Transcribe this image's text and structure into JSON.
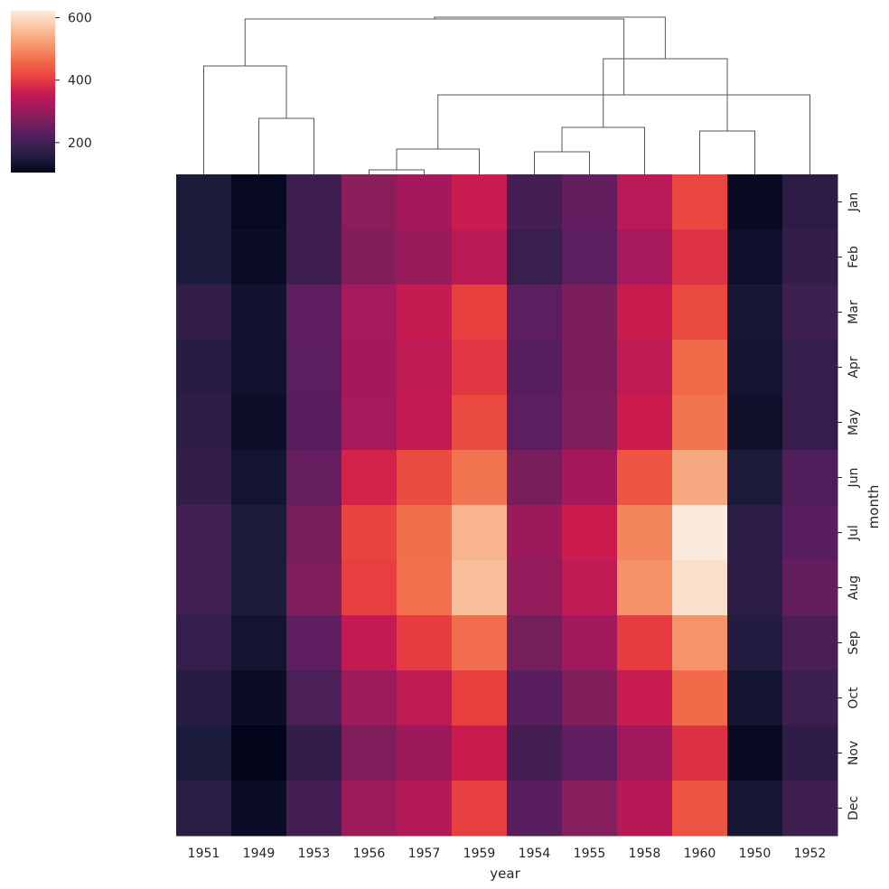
{
  "chart_data": {
    "type": "heatmap",
    "xlabel": "year",
    "ylabel": "month",
    "x_categories": [
      "1951",
      "1949",
      "1953",
      "1956",
      "1957",
      "1959",
      "1954",
      "1955",
      "1958",
      "1960",
      "1950",
      "1952"
    ],
    "y_categories": [
      "Jan",
      "Feb",
      "Mar",
      "Apr",
      "May",
      "Jun",
      "Jul",
      "Aug",
      "Sep",
      "Oct",
      "Nov",
      "Dec"
    ],
    "values": [
      [
        145,
        112,
        196,
        284,
        315,
        360,
        204,
        242,
        340,
        417,
        115,
        171
      ],
      [
        150,
        118,
        196,
        277,
        301,
        342,
        188,
        233,
        318,
        391,
        126,
        180
      ],
      [
        178,
        132,
        236,
        317,
        356,
        406,
        235,
        267,
        362,
        419,
        141,
        193
      ],
      [
        163,
        129,
        235,
        313,
        348,
        396,
        227,
        269,
        348,
        461,
        135,
        181
      ],
      [
        172,
        121,
        229,
        318,
        355,
        420,
        234,
        270,
        363,
        472,
        125,
        183
      ],
      [
        178,
        135,
        243,
        374,
        422,
        472,
        264,
        315,
        435,
        535,
        149,
        218
      ],
      [
        199,
        148,
        264,
        413,
        465,
        548,
        302,
        364,
        491,
        622,
        170,
        230
      ],
      [
        199,
        148,
        272,
        405,
        467,
        559,
        293,
        347,
        505,
        606,
        170,
        242
      ],
      [
        184,
        136,
        237,
        355,
        404,
        463,
        259,
        312,
        404,
        508,
        158,
        209
      ],
      [
        162,
        119,
        211,
        306,
        347,
        407,
        229,
        274,
        359,
        461,
        133,
        191
      ],
      [
        146,
        104,
        180,
        271,
        305,
        362,
        203,
        237,
        310,
        390,
        114,
        172
      ],
      [
        166,
        118,
        201,
        306,
        336,
        405,
        229,
        278,
        337,
        432,
        140,
        194
      ]
    ],
    "colorbar": {
      "min": 104,
      "max": 622,
      "ticks": [
        200,
        400,
        600
      ]
    },
    "colormap": [
      "#03051a",
      "#1b1b3b",
      "#3b1f4f",
      "#5c1e60",
      "#841e5a",
      "#a9185c",
      "#cb1b4f",
      "#e83f3f",
      "#f06043",
      "#f4875e",
      "#f6aa82",
      "#f9cdac",
      "#faebdd"
    ],
    "dendrogram": {
      "merge_order": [
        [
          3,
          4
        ],
        [
          7,
          6
        ],
        [
          12,
          5
        ],
        [
          13,
          8
        ],
        [
          1,
          2
        ],
        [
          9,
          10
        ],
        [
          11,
          14
        ],
        [
          0,
          16
        ],
        [
          17,
          15
        ],
        [
          18,
          19
        ],
        [
          20,
          21
        ]
      ],
      "merge_heights": [
        5,
        25,
        28,
        52,
        62,
        48,
        88,
        120,
        128,
        172,
        174
      ]
    }
  }
}
